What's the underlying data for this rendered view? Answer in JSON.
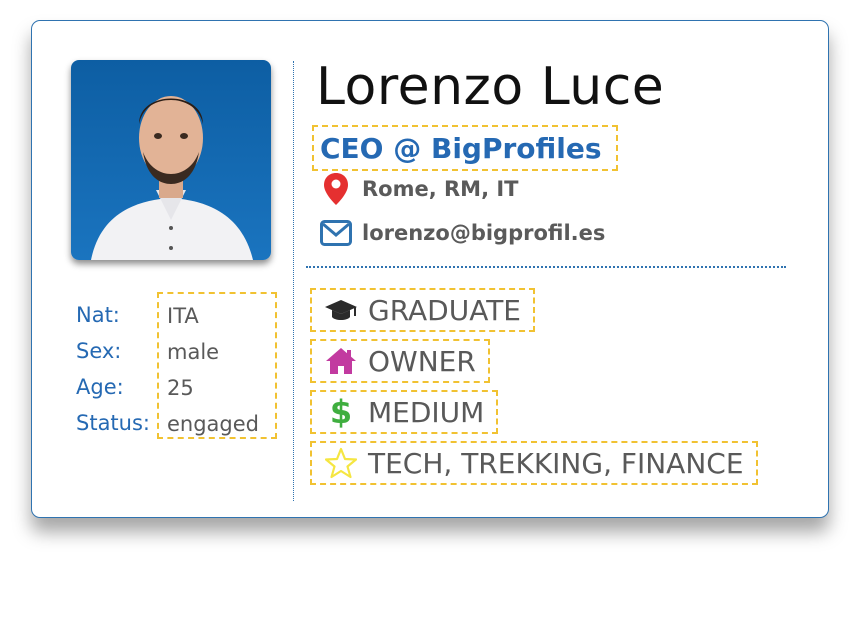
{
  "profile": {
    "name": "Lorenzo Luce",
    "role": "CEO @ BigProfiles",
    "location": "Rome, RM, IT",
    "email": "lorenzo@bigprofil.es"
  },
  "details": {
    "labels": [
      "Nat:",
      "Sex:",
      "Age:",
      "Status:"
    ],
    "values": [
      "ITA",
      "male",
      "25",
      "engaged"
    ]
  },
  "tags": [
    {
      "icon": "graduation-cap-icon",
      "label": "GRADUATE",
      "color": "#2b2b2b"
    },
    {
      "icon": "home-icon",
      "label": "OWNER",
      "color": "#c23aa0"
    },
    {
      "icon": "dollar-icon",
      "label": "MEDIUM",
      "color": "#3fae3f"
    },
    {
      "icon": "star-icon",
      "label": "TECH, TREKKING, FINANCE",
      "color": "#f5e642"
    }
  ],
  "colors": {
    "accent": "#2569b3",
    "highlight_border": "#f1c232",
    "location_pin": "#e53030",
    "email_icon": "#2f73b0"
  }
}
